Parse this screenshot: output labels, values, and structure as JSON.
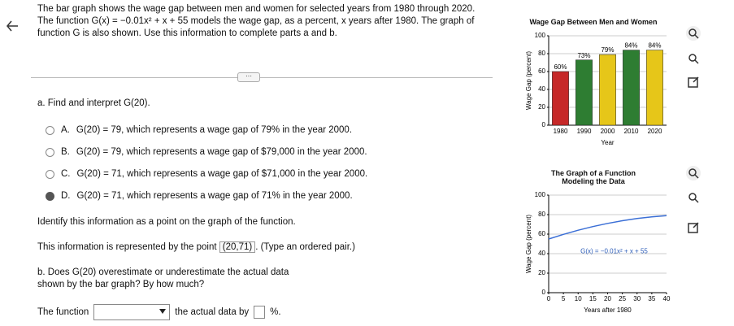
{
  "intro": "The bar graph shows the wage gap between men and women for selected years from 1980 through 2020. The function G(x) = −0.01x² + x + 55 models the wage gap, as a percent, x years after 1980. The graph of function G is also shown. Use this information to complete parts a and b.",
  "part_a": {
    "prompt": "a. Find and interpret G(20).",
    "options": [
      {
        "letter": "A.",
        "text": "G(20) = 79, which represents a wage gap of 79% in the year 2000."
      },
      {
        "letter": "B.",
        "text": "G(20) = 79, which represents a wage gap of $79,000 in the year 2000."
      },
      {
        "letter": "C.",
        "text": "G(20) = 71, which represents a wage gap of $71,000 in the year 2000."
      },
      {
        "letter": "D.",
        "text": "G(20) = 71, which represents a wage gap of 71% in the year 2000."
      }
    ],
    "selected": 3
  },
  "identify": "Identify this information as a point on the graph of the function.",
  "point_prefix": "This information is represented by the point",
  "point_answer": "(20,71)",
  "point_suffix": ". (Type an ordered pair.)",
  "part_b": "b. Does G(20) overestimate or underestimate the actual data shown by the bar graph? By how much?",
  "fill_prefix": "The function",
  "fill_middle": "the actual data by",
  "fill_suffix": "%.",
  "chart_data": [
    {
      "type": "bar",
      "title": "Wage Gap Between Men and Women",
      "x_label": "Year",
      "y_label": "Wage Gap (percent)",
      "categories": [
        "1980",
        "1990",
        "2000",
        "2010",
        "2020"
      ],
      "values": [
        60,
        73,
        79,
        84,
        84
      ],
      "value_labels": [
        "60%",
        "73%",
        "79%",
        "84%",
        "84%"
      ],
      "colors": [
        "#c62828",
        "#2e7d32",
        "#e6c619",
        "#2e7d32",
        "#e6c619"
      ],
      "ylim": [
        0,
        100
      ],
      "yticks": [
        0,
        20,
        40,
        60,
        80,
        100
      ],
      "grid": true
    },
    {
      "type": "line",
      "title": "The Graph of a Function Modeling the Data",
      "x_label": "Years after 1980",
      "y_label": "Wage Gap (percent)",
      "annotation": "G(x) = −0.01x² + x + 55",
      "x": [
        0,
        5,
        10,
        15,
        20,
        25,
        30,
        35,
        40
      ],
      "values": [
        55,
        59.75,
        64,
        67.75,
        71,
        73.75,
        76,
        77.75,
        79
      ],
      "color": "#3b6fd6",
      "xlim": [
        0,
        40
      ],
      "xticks": [
        0,
        5,
        10,
        15,
        20,
        25,
        30,
        35,
        40
      ],
      "ylim": [
        0,
        100
      ],
      "yticks": [
        0,
        20,
        40,
        60,
        80,
        100
      ],
      "grid": true
    }
  ]
}
